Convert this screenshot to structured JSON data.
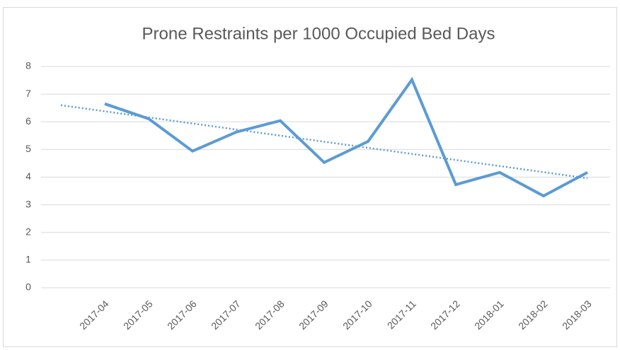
{
  "chart_data": {
    "type": "line",
    "title": "Prone Restraints per 1000 Occupied Bed Days",
    "categories": [
      "2017-04",
      "2017-05",
      "2017-06",
      "2017-07",
      "2017-08",
      "2017-09",
      "2017-10",
      "2017-11",
      "2017-12",
      "2018-01",
      "2018-02",
      "2018-03"
    ],
    "series": [
      {
        "name": "Prone Restraints per 1000 Occupied Bed Days",
        "color": "#5b9bd5",
        "values": [
          6.65,
          6.11,
          4.94,
          5.63,
          6.04,
          4.53,
          5.29,
          7.52,
          3.73,
          4.17,
          3.32,
          4.17
        ]
      }
    ],
    "trendline": {
      "color": "#5b9bd5",
      "values": [
        6.6,
        3.96
      ]
    },
    "ylim": [
      0,
      8
    ],
    "yticks": [
      0,
      1,
      2,
      3,
      4,
      5,
      6,
      7,
      8
    ],
    "grid": true
  }
}
